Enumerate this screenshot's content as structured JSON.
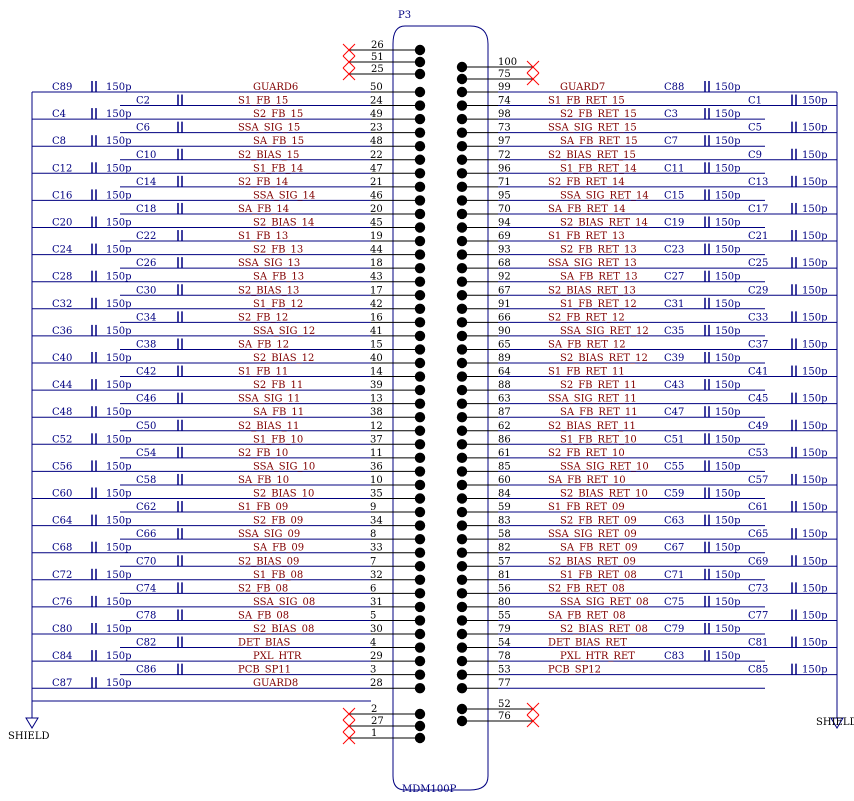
{
  "designator": "P3",
  "part_name": "MDM100P",
  "shield_left": "SHIELD",
  "shield_right": "SHIELD",
  "top_nc": {
    "left": [
      "26",
      "51",
      "25"
    ],
    "right": [
      "100",
      "75"
    ]
  },
  "bottom_nc": {
    "left": [
      "2",
      "27",
      "1"
    ],
    "right": [
      "52",
      "76"
    ]
  },
  "rows": [
    {
      "lp": "50",
      "ln": "GUARD6",
      "lc": "C89",
      "lv": "150p",
      "rp": "99",
      "rn": "GUARD7",
      "rc": "C88",
      "rv": "150p"
    },
    {
      "lp": "24",
      "ln": "S1_FB_15",
      "lc": "C2",
      "lv": "",
      "rp": "74",
      "rn": "S1_FB_RET_15",
      "rc": "C1",
      "rv": "150p"
    },
    {
      "lp": "49",
      "ln": "S2_FB_15",
      "lc": "C4",
      "lv": "150p",
      "rp": "98",
      "rn": "S2_FB_RET_15",
      "rc": "C3",
      "rv": "150p"
    },
    {
      "lp": "23",
      "ln": "SSA_SIG_15",
      "lc": "C6",
      "lv": "",
      "rp": "73",
      "rn": "SSA_SIG_RET_15",
      "rc": "C5",
      "rv": "150p"
    },
    {
      "lp": "48",
      "ln": "SA_FB_15",
      "lc": "C8",
      "lv": "150p",
      "rp": "97",
      "rn": "SA_FB_RET_15",
      "rc": "C7",
      "rv": "150p"
    },
    {
      "lp": "22",
      "ln": "S2_BIAS_15",
      "lc": "C10",
      "lv": "",
      "rp": "72",
      "rn": "S2_BIAS_RET_15",
      "rc": "C9",
      "rv": "150p"
    },
    {
      "lp": "47",
      "ln": "S1_FB_14",
      "lc": "C12",
      "lv": "150p",
      "rp": "96",
      "rn": "S1_FB_RET_14",
      "rc": "C11",
      "rv": "150p"
    },
    {
      "lp": "21",
      "ln": "S2_FB_14",
      "lc": "C14",
      "lv": "",
      "rp": "71",
      "rn": "S2_FB_RET_14",
      "rc": "C13",
      "rv": "150p"
    },
    {
      "lp": "46",
      "ln": "SSA_SIG_14",
      "lc": "C16",
      "lv": "150p",
      "rp": "95",
      "rn": "SSA_SIG_RET_14",
      "rc": "C15",
      "rv": "150p"
    },
    {
      "lp": "20",
      "ln": "SA_FB_14",
      "lc": "C18",
      "lv": "",
      "rp": "70",
      "rn": "SA_FB_RET_14",
      "rc": "C17",
      "rv": "150p"
    },
    {
      "lp": "45",
      "ln": "S2_BIAS_14",
      "lc": "C20",
      "lv": "150p",
      "rp": "94",
      "rn": "S2_BIAS_RET_14",
      "rc": "C19",
      "rv": "150p"
    },
    {
      "lp": "19",
      "ln": "S1_FB_13",
      "lc": "C22",
      "lv": "",
      "rp": "69",
      "rn": "S1_FB_RET_13",
      "rc": "C21",
      "rv": "150p"
    },
    {
      "lp": "44",
      "ln": "S2_FB_13",
      "lc": "C24",
      "lv": "150p",
      "rp": "93",
      "rn": "S2_FB_RET_13",
      "rc": "C23",
      "rv": "150p"
    },
    {
      "lp": "18",
      "ln": "SSA_SIG_13",
      "lc": "C26",
      "lv": "",
      "rp": "68",
      "rn": "SSA_SIG_RET_13",
      "rc": "C25",
      "rv": "150p"
    },
    {
      "lp": "43",
      "ln": "SA_FB_13",
      "lc": "C28",
      "lv": "150p",
      "rp": "92",
      "rn": "SA_FB_RET_13",
      "rc": "C27",
      "rv": "150p"
    },
    {
      "lp": "17",
      "ln": "S2_BIAS_13",
      "lc": "C30",
      "lv": "",
      "rp": "67",
      "rn": "S2_BIAS_RET_13",
      "rc": "C29",
      "rv": "150p"
    },
    {
      "lp": "42",
      "ln": "S1_FB_12",
      "lc": "C32",
      "lv": "150p",
      "rp": "91",
      "rn": "S1_FB_RET_12",
      "rc": "C31",
      "rv": "150p"
    },
    {
      "lp": "16",
      "ln": "S2_FB_12",
      "lc": "C34",
      "lv": "",
      "rp": "66",
      "rn": "S2_FB_RET_12",
      "rc": "C33",
      "rv": "150p"
    },
    {
      "lp": "41",
      "ln": "SSA_SIG_12",
      "lc": "C36",
      "lv": "150p",
      "rp": "90",
      "rn": "SSA_SIG_RET_12",
      "rc": "C35",
      "rv": "150p"
    },
    {
      "lp": "15",
      "ln": "SA_FB_12",
      "lc": "C38",
      "lv": "",
      "rp": "65",
      "rn": "SA_FB_RET_12",
      "rc": "C37",
      "rv": "150p"
    },
    {
      "lp": "40",
      "ln": "S2_BIAS_12",
      "lc": "C40",
      "lv": "150p",
      "rp": "89",
      "rn": "S2_BIAS_RET_12",
      "rc": "C39",
      "rv": "150p"
    },
    {
      "lp": "14",
      "ln": "S1_FB_11",
      "lc": "C42",
      "lv": "",
      "rp": "64",
      "rn": "S1_FB_RET_11",
      "rc": "C41",
      "rv": "150p"
    },
    {
      "lp": "39",
      "ln": "S2_FB_11",
      "lc": "C44",
      "lv": "150p",
      "rp": "88",
      "rn": "S2_FB_RET_11",
      "rc": "C43",
      "rv": "150p"
    },
    {
      "lp": "13",
      "ln": "SSA_SIG_11",
      "lc": "C46",
      "lv": "",
      "rp": "63",
      "rn": "SSA_SIG_RET_11",
      "rc": "C45",
      "rv": "150p"
    },
    {
      "lp": "38",
      "ln": "SA_FB_11",
      "lc": "C48",
      "lv": "150p",
      "rp": "87",
      "rn": "SA_FB_RET_11",
      "rc": "C47",
      "rv": "150p"
    },
    {
      "lp": "12",
      "ln": "S2_BIAS_11",
      "lc": "C50",
      "lv": "",
      "rp": "62",
      "rn": "S2_BIAS_RET_11",
      "rc": "C49",
      "rv": "150p"
    },
    {
      "lp": "37",
      "ln": "S1_FB_10",
      "lc": "C52",
      "lv": "150p",
      "rp": "86",
      "rn": "S1_FB_RET_10",
      "rc": "C51",
      "rv": "150p"
    },
    {
      "lp": "11",
      "ln": "S2_FB_10",
      "lc": "C54",
      "lv": "",
      "rp": "61",
      "rn": "S2_FB_RET_10",
      "rc": "C53",
      "rv": "150p"
    },
    {
      "lp": "36",
      "ln": "SSA_SIG_10",
      "lc": "C56",
      "lv": "150p",
      "rp": "85",
      "rn": "SSA_SIG_RET_10",
      "rc": "C55",
      "rv": "150p"
    },
    {
      "lp": "10",
      "ln": "SA_FB_10",
      "lc": "C58",
      "lv": "",
      "rp": "60",
      "rn": "SA_FB_RET_10",
      "rc": "C57",
      "rv": "150p"
    },
    {
      "lp": "35",
      "ln": "S2_BIAS_10",
      "lc": "C60",
      "lv": "150p",
      "rp": "84",
      "rn": "S2_BIAS_RET_10",
      "rc": "C59",
      "rv": "150p"
    },
    {
      "lp": "9",
      "ln": "S1_FB_09",
      "lc": "C62",
      "lv": "",
      "rp": "59",
      "rn": "S1_FB_RET_09",
      "rc": "C61",
      "rv": "150p"
    },
    {
      "lp": "34",
      "ln": "S2_FB_09",
      "lc": "C64",
      "lv": "150p",
      "rp": "83",
      "rn": "S2_FB_RET_09",
      "rc": "C63",
      "rv": "150p"
    },
    {
      "lp": "8",
      "ln": "SSA_SIG_09",
      "lc": "C66",
      "lv": "",
      "rp": "58",
      "rn": "SSA_SIG_RET_09",
      "rc": "C65",
      "rv": "150p"
    },
    {
      "lp": "33",
      "ln": "SA_FB_09",
      "lc": "C68",
      "lv": "150p",
      "rp": "82",
      "rn": "SA_FB_RET_09",
      "rc": "C67",
      "rv": "150p"
    },
    {
      "lp": "7",
      "ln": "S2_BIAS_09",
      "lc": "C70",
      "lv": "",
      "rp": "57",
      "rn": "S2_BIAS_RET_09",
      "rc": "C69",
      "rv": "150p"
    },
    {
      "lp": "32",
      "ln": "S1_FB_08",
      "lc": "C72",
      "lv": "150p",
      "rp": "81",
      "rn": "S1_FB_RET_08",
      "rc": "C71",
      "rv": "150p"
    },
    {
      "lp": "6",
      "ln": "S2_FB_08",
      "lc": "C74",
      "lv": "",
      "rp": "56",
      "rn": "S2_FB_RET_08",
      "rc": "C73",
      "rv": "150p"
    },
    {
      "lp": "31",
      "ln": "SSA_SIG_08",
      "lc": "C76",
      "lv": "150p",
      "rp": "80",
      "rn": "SSA_SIG_RET_08",
      "rc": "C75",
      "rv": "150p"
    },
    {
      "lp": "5",
      "ln": "SA_FB_08",
      "lc": "C78",
      "lv": "",
      "rp": "55",
      "rn": "SA_FB_RET_08",
      "rc": "C77",
      "rv": "150p"
    },
    {
      "lp": "30",
      "ln": "S2_BIAS_08",
      "lc": "C80",
      "lv": "150p",
      "rp": "79",
      "rn": "S2_BIAS_RET_08",
      "rc": "C79",
      "rv": "150p"
    },
    {
      "lp": "4",
      "ln": "DET_BIAS",
      "lc": "C82",
      "lv": "",
      "rp": "54",
      "rn": "DET_BIAS_RET",
      "rc": "C81",
      "rv": "150p"
    },
    {
      "lp": "29",
      "ln": "PXL_HTR",
      "lc": "C84",
      "lv": "150p",
      "rp": "78",
      "rn": "PXL_HTR_RET",
      "rc": "C83",
      "rv": "150p"
    },
    {
      "lp": "3",
      "ln": "PCB_SP11",
      "lc": "C86",
      "lv": "",
      "rp": "53",
      "rn": "PCB_SP12",
      "rc": "C85",
      "rv": "150p"
    },
    {
      "lp": "28",
      "ln": "GUARD8",
      "lc": "C87",
      "lv": "150p",
      "rp": "77",
      "rn": "",
      "rc": "",
      "rv": ""
    }
  ]
}
